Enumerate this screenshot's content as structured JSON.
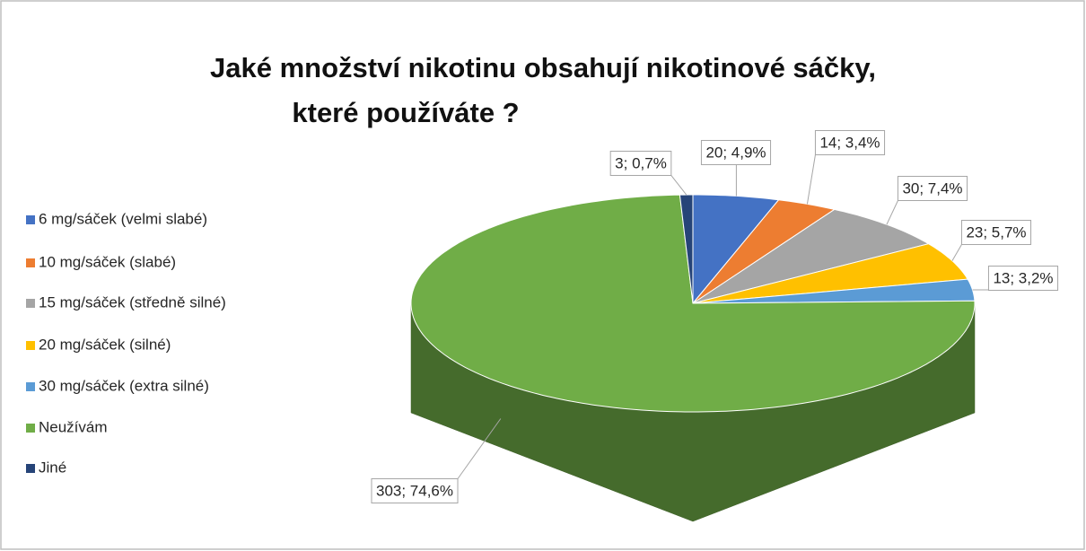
{
  "chart_data": {
    "type": "pie3d",
    "title": [
      "Jaké množství nikotinu obsahují nikotinové sáčky,",
      "které používáte ?"
    ],
    "categories": [
      "6 mg/sáček (velmi slabé)",
      "10 mg/sáček (slabé)",
      "15 mg/sáček (středně silné)",
      "20 mg/sáček (silné)",
      "30 mg/sáček (extra silné)",
      "Neužívám",
      "Jiné"
    ],
    "values": [
      20,
      14,
      30,
      23,
      13,
      303,
      3
    ],
    "value_labels": [
      "20; 4,9%",
      "14; 3,4%",
      "30; 7,4%",
      "23; 5,7%",
      "13; 3,2%",
      "303; 74,6%",
      "3; 0,7%"
    ],
    "colors": [
      "#4472c4",
      "#ed7d31",
      "#a5a5a5",
      "#ffc000",
      "#5b9bd5",
      "#70ad47",
      "#264478"
    ],
    "legend": "left"
  }
}
